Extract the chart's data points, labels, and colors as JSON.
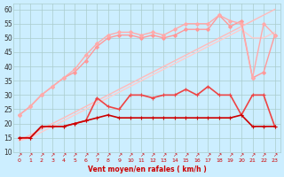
{
  "xlabel": "Vent moyen/en rafales ( km/h )",
  "bg_color": "#cceeff",
  "grid_color": "#aacccc",
  "xlim": [
    -0.5,
    23.5
  ],
  "ylim": [
    10,
    62
  ],
  "yticks": [
    10,
    15,
    20,
    25,
    30,
    35,
    40,
    45,
    50,
    55,
    60
  ],
  "xticks": [
    0,
    1,
    2,
    3,
    4,
    5,
    6,
    7,
    8,
    9,
    10,
    11,
    12,
    13,
    14,
    15,
    16,
    17,
    18,
    19,
    20,
    21,
    22,
    23
  ],
  "series": [
    {
      "x": [
        0,
        1,
        2,
        3,
        4,
        5,
        6,
        7,
        8,
        9,
        10,
        11,
        12,
        13,
        14,
        15,
        16,
        17,
        18,
        19,
        20,
        21,
        22,
        23
      ],
      "y": [
        14,
        16,
        18,
        20,
        22,
        24,
        26,
        28,
        30,
        32,
        34,
        36,
        38,
        40,
        42,
        44,
        46,
        48,
        50,
        52,
        54,
        56,
        58,
        60
      ],
      "color": "#ffbbbb",
      "lw": 1.0,
      "marker": null,
      "ms": 0
    },
    {
      "x": [
        0,
        1,
        2,
        3,
        4,
        5,
        6,
        7,
        8,
        9,
        10,
        11,
        12,
        13,
        14,
        15,
        16,
        17,
        18,
        19,
        20,
        21,
        22,
        23
      ],
      "y": [
        14,
        15,
        17,
        19,
        21,
        23,
        25,
        27,
        29,
        31,
        33,
        35,
        37,
        39,
        41,
        43,
        45,
        47,
        49,
        51,
        53,
        50,
        50,
        52
      ],
      "color": "#ffcccc",
      "lw": 1.0,
      "marker": null,
      "ms": 0
    },
    {
      "x": [
        0,
        1,
        2,
        3,
        4,
        5,
        6,
        7,
        8,
        9,
        10,
        11,
        12,
        13,
        14,
        15,
        16,
        17,
        18,
        19,
        20,
        21,
        22,
        23
      ],
      "y": [
        23,
        26,
        30,
        33,
        36,
        38,
        42,
        47,
        50,
        51,
        51,
        50,
        51,
        50,
        51,
        53,
        53,
        53,
        58,
        54,
        56,
        36,
        38,
        51
      ],
      "color": "#ff9999",
      "lw": 1.0,
      "marker": "D",
      "ms": 2.0
    },
    {
      "x": [
        0,
        1,
        2,
        3,
        4,
        5,
        6,
        7,
        8,
        9,
        10,
        11,
        12,
        13,
        14,
        15,
        16,
        17,
        18,
        19,
        20,
        21,
        22,
        23
      ],
      "y": [
        23,
        26,
        30,
        33,
        36,
        39,
        44,
        48,
        51,
        52,
        52,
        51,
        52,
        51,
        53,
        55,
        55,
        55,
        58,
        56,
        55,
        36,
        55,
        51
      ],
      "color": "#ffaaaa",
      "lw": 1.0,
      "marker": "D",
      "ms": 2.0
    },
    {
      "x": [
        0,
        1,
        2,
        3,
        4,
        5,
        6,
        7,
        8,
        9,
        10,
        11,
        12,
        13,
        14,
        15,
        16,
        17,
        18,
        19,
        20,
        21,
        22,
        23
      ],
      "y": [
        15,
        15,
        19,
        19,
        19,
        20,
        21,
        29,
        26,
        25,
        30,
        30,
        29,
        30,
        30,
        32,
        30,
        33,
        30,
        30,
        23,
        30,
        30,
        19
      ],
      "color": "#ee4444",
      "lw": 1.2,
      "marker": "+",
      "ms": 3.5
    },
    {
      "x": [
        0,
        1,
        2,
        3,
        4,
        5,
        6,
        7,
        8,
        9,
        10,
        11,
        12,
        13,
        14,
        15,
        16,
        17,
        18,
        19,
        20,
        21,
        22,
        23
      ],
      "y": [
        15,
        15,
        19,
        19,
        19,
        20,
        21,
        22,
        23,
        22,
        22,
        22,
        22,
        22,
        22,
        22,
        22,
        22,
        22,
        22,
        23,
        19,
        19,
        19
      ],
      "color": "#cc0000",
      "lw": 1.2,
      "marker": "+",
      "ms": 3.0
    }
  ]
}
